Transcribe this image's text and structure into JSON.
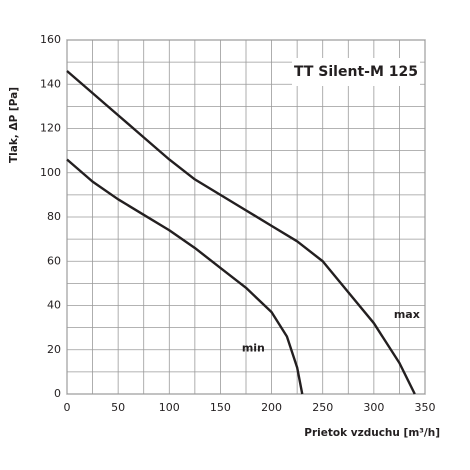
{
  "chart_data": {
    "type": "line",
    "title": "TT Silent-M 125",
    "x_label": "Prietok vzduchu [m³/h]",
    "y_label": "Tlak, ΔP [Pa]",
    "series": [
      {
        "name": "max",
        "color": "#231f20",
        "x": [
          0,
          25,
          50,
          75,
          100,
          125,
          150,
          175,
          200,
          225,
          250,
          275,
          300,
          325,
          340
        ],
        "values": [
          146,
          136,
          126,
          116,
          106,
          97,
          90,
          83,
          76,
          69,
          60,
          46,
          32,
          14,
          0
        ]
      },
      {
        "name": "min",
        "color": "#231f20",
        "x": [
          0,
          25,
          50,
          75,
          100,
          125,
          150,
          175,
          200,
          215,
          225,
          230
        ],
        "values": [
          106,
          96,
          88,
          81,
          74,
          66,
          57,
          48,
          37,
          26,
          12,
          0
        ]
      }
    ],
    "xlim": [
      0,
      350
    ],
    "ylim": [
      0,
      160
    ],
    "xticks": [
      0,
      50,
      100,
      150,
      200,
      250,
      300,
      350
    ],
    "yticks": [
      0,
      20,
      40,
      60,
      80,
      100,
      120,
      140,
      160
    ],
    "xminorticks": [
      25,
      75,
      125,
      175,
      225,
      275,
      325
    ],
    "yminorticks": [
      10,
      30,
      50,
      70,
      90,
      110,
      130,
      150
    ],
    "grid": true
  }
}
